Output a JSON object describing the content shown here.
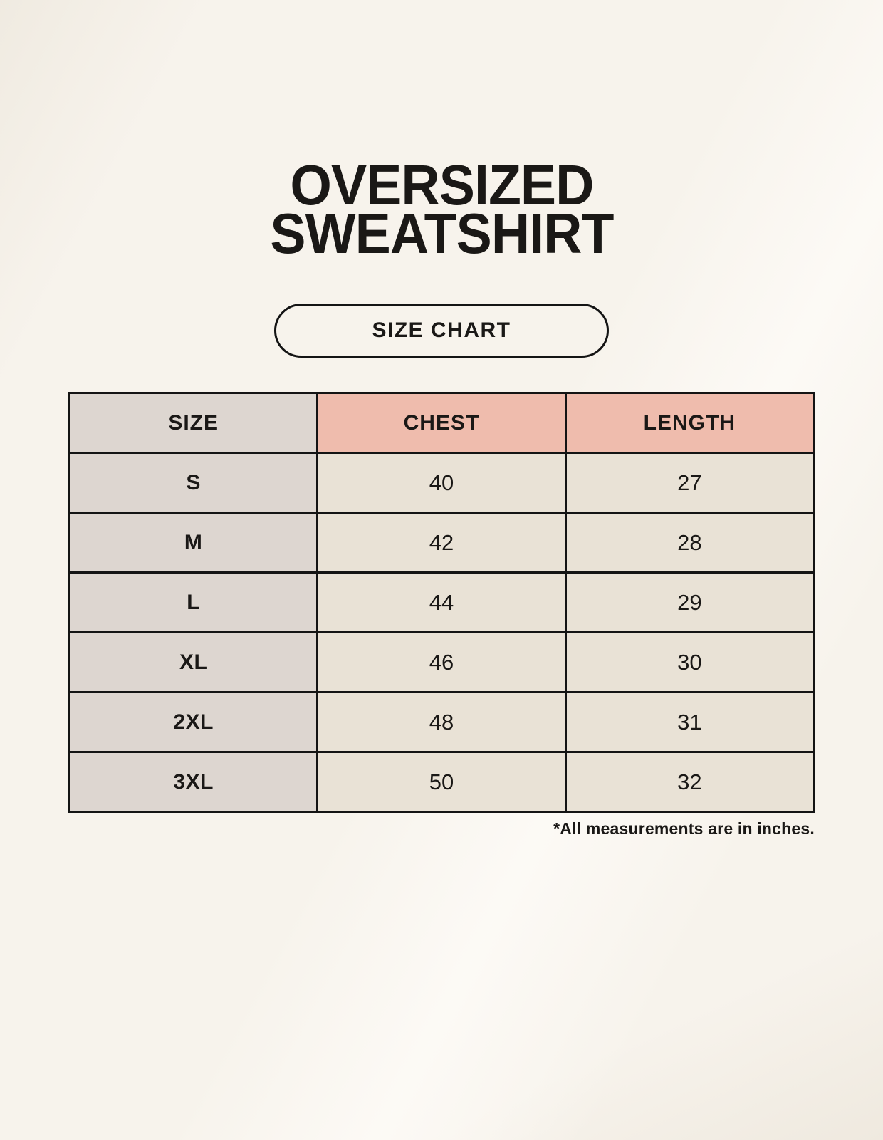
{
  "title": {
    "line1": "OVERSIZED",
    "line2": "SWEATSHIRT"
  },
  "size_chart_button": {
    "label": "SIZE CHART"
  },
  "table": {
    "headers": [
      "SIZE",
      "CHEST",
      "LENGTH"
    ],
    "rows": [
      {
        "size": "S",
        "chest": "40",
        "length": "27"
      },
      {
        "size": "M",
        "chest": "42",
        "length": "28"
      },
      {
        "size": "L",
        "chest": "44",
        "length": "29"
      },
      {
        "size": "XL",
        "chest": "46",
        "length": "30"
      },
      {
        "size": "2XL",
        "chest": "48",
        "length": "31"
      },
      {
        "size": "3XL",
        "chest": "50",
        "length": "32"
      }
    ],
    "footnote": "*All measurements are in inches."
  },
  "colors": {
    "background": "#F7F3EC",
    "header_accent": "#EFBCAD",
    "size_column": "#DDD6D0",
    "cell_background": "#E9E2D6",
    "border": "#141414",
    "text": "#1A1816"
  },
  "chart_data": {
    "type": "table",
    "title": "OVERSIZED SWEATSHIRT SIZE CHART",
    "columns": [
      "SIZE",
      "CHEST",
      "LENGTH"
    ],
    "rows": [
      [
        "S",
        40,
        27
      ],
      [
        "M",
        42,
        28
      ],
      [
        "L",
        44,
        29
      ],
      [
        "XL",
        46,
        30
      ],
      [
        "2XL",
        48,
        31
      ],
      [
        "3XL",
        50,
        32
      ]
    ],
    "units": "inches"
  }
}
